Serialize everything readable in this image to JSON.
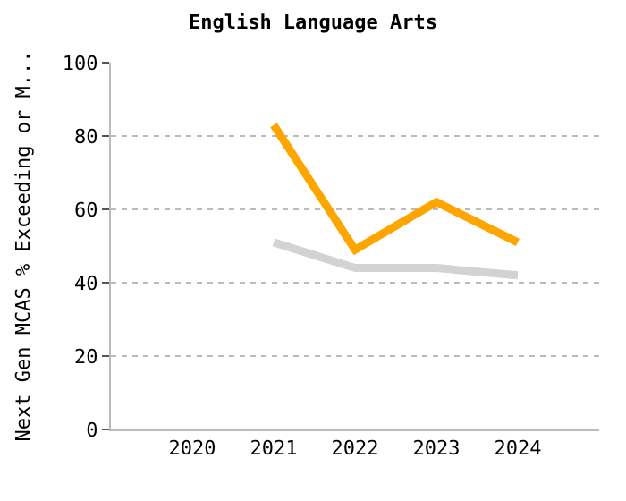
{
  "chart_data": {
    "type": "line",
    "title": "English Language Arts",
    "ylabel": "Next Gen MCAS % Exceeding or M...",
    "x": [
      2021,
      2022,
      2023,
      2024
    ],
    "series": [
      {
        "color": "#ffa500",
        "values": [
          83,
          49,
          62,
          51
        ]
      },
      {
        "color": "#d3d3d3",
        "values": [
          51,
          44,
          44,
          42
        ]
      }
    ],
    "xlim": [
      2019,
      2025
    ],
    "xticks": [
      2020,
      2021,
      2022,
      2023,
      2024
    ],
    "ylim": [
      0,
      100
    ],
    "yticks": [
      0,
      20,
      40,
      60,
      80,
      100
    ],
    "grid": "y",
    "marker": "none",
    "line_style": "solid"
  }
}
